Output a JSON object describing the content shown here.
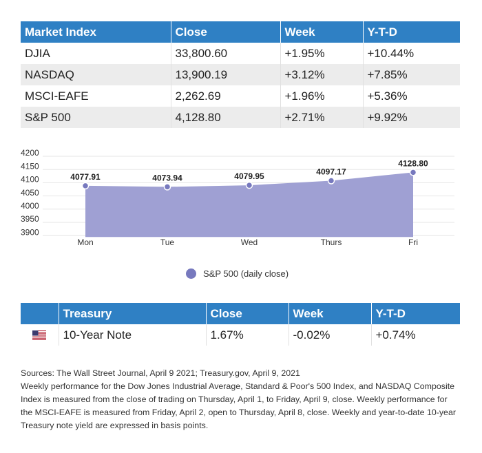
{
  "index_table": {
    "headers": [
      "Market Index",
      "Close",
      "Week",
      "Y-T-D"
    ],
    "rows": [
      [
        "DJIA",
        "33,800.60",
        "+1.95%",
        "+10.44%"
      ],
      [
        "NASDAQ",
        "13,900.19",
        "+3.12%",
        "+7.85%"
      ],
      [
        "MSCI-EAFE",
        "2,262.69",
        "+1.96%",
        "+5.36%"
      ],
      [
        "S&P 500",
        "4,128.80",
        "+2.71%",
        "+9.92%"
      ]
    ]
  },
  "chart_data": {
    "type": "area",
    "categories": [
      "Mon",
      "Tue",
      "Wed",
      "Thurs",
      "Fri"
    ],
    "series": [
      {
        "name": "S&P 500 (daily close)",
        "values": [
          4077.91,
          4073.94,
          4079.95,
          4097.17,
          4128.8
        ],
        "labels": [
          "4077.91",
          "4073.94",
          "4079.95",
          "4097.17",
          "4128.80"
        ]
      }
    ],
    "y_ticks": [
      3900,
      3950,
      4000,
      4050,
      4100,
      4150,
      4200
    ],
    "grid": true,
    "legend": "bottom-center",
    "fill_color": "#9fa0d3",
    "point_color": "#7779be"
  },
  "treasury_table": {
    "headers": [
      "",
      "Treasury",
      "Close",
      "Week",
      "Y-T-D"
    ],
    "rows": [
      {
        "flag": "us-flag-icon",
        "name": "10-Year Note",
        "close": "1.67%",
        "week": "-0.02%",
        "ytd": "+0.74%"
      }
    ]
  },
  "notes": {
    "sources": "Sources: The Wall Street Journal, April 9 2021; Treasury.gov, April 9, 2021",
    "body": "Weekly performance for the Dow Jones Industrial Average, Standard & Poor's 500 Index, and NASDAQ Composite Index is measured from the close of trading on Thursday, April 1, to Friday, April 9, close. Weekly performance for the MSCI-EAFE is measured from Friday, April 2, open to Thursday, April 8, close. Weekly and year-to-date 10-year Treasury note yield are expressed in basis points."
  },
  "colors": {
    "header_bg": "#2f80c4",
    "row_alt_bg": "#ececec"
  }
}
